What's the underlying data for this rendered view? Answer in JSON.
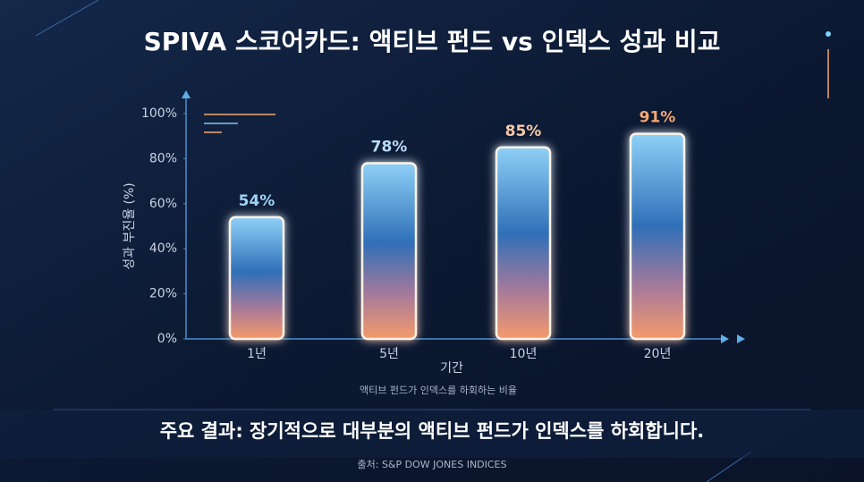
{
  "chart_data": {
    "type": "bar",
    "title": "SPIVA 스코어카드: 액티브 펀드 vs 인덱스 성과 비교",
    "y_label": "성과 부진율 (%)",
    "x_label": "기간",
    "note": "액티브 펀드가 인덱스를 하회하는 비율",
    "key_finding": "주요 결과: 장기적으로 대부분의 액티브 펀드가 인덱스를 하회합니다.",
    "source": "출처: S&P DOW JONES INDICES",
    "categories": [
      "1년",
      "5년",
      "10년",
      "20년"
    ],
    "values": [
      54,
      78,
      85,
      91
    ],
    "value_labels": [
      "54%",
      "78%",
      "85%",
      "91%"
    ],
    "value_label_colors": [
      "#9fd4f5",
      "#b9dcf5",
      "#f7c9a6",
      "#f5a872"
    ],
    "ylim": [
      0,
      100
    ],
    "yticks": [
      {
        "value": 0,
        "label": "0%"
      },
      {
        "value": 20,
        "label": "20%"
      },
      {
        "value": 40,
        "label": "40%"
      },
      {
        "value": 60,
        "label": "60%"
      },
      {
        "value": 80,
        "label": "80%"
      },
      {
        "value": 100,
        "label": "100%"
      }
    ],
    "grid": false
  }
}
